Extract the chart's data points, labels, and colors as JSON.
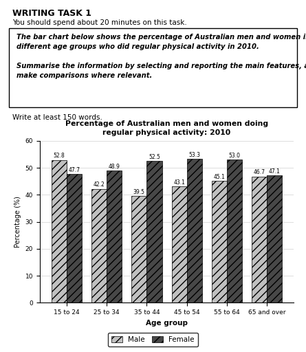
{
  "title": "Percentage of Australian men and women doing\nregular physical activity: 2010",
  "categories": [
    "15 to 24",
    "25 to 34",
    "35 to 44",
    "45 to 54",
    "55 to 64",
    "65 and over"
  ],
  "male_values": [
    52.8,
    42.2,
    39.5,
    43.1,
    45.1,
    46.7
  ],
  "female_values": [
    47.7,
    48.9,
    52.5,
    53.3,
    53.0,
    47.1
  ],
  "ylabel": "Percentage (%)",
  "xlabel": "Age group",
  "ylim": [
    0,
    60
  ],
  "yticks": [
    0,
    10,
    20,
    30,
    40,
    50,
    60
  ],
  "male_color": "#c0c0c0",
  "female_color": "#484848",
  "legend_labels": [
    "Male",
    "Female"
  ],
  "bar_width": 0.38,
  "header_title": "WRITING TASK 1",
  "header_sub": "You should spend about 20 minutes on this task.",
  "box_text": "The bar chart below shows the percentage of Australian men and women in\ndifferent age groups who did regular physical activity in 2010.\n\nSummarise the information by selecting and reporting the main features, and\nmake comparisons where relevant.",
  "footer": "Write at least 150 words.",
  "background_color": "#ffffff"
}
